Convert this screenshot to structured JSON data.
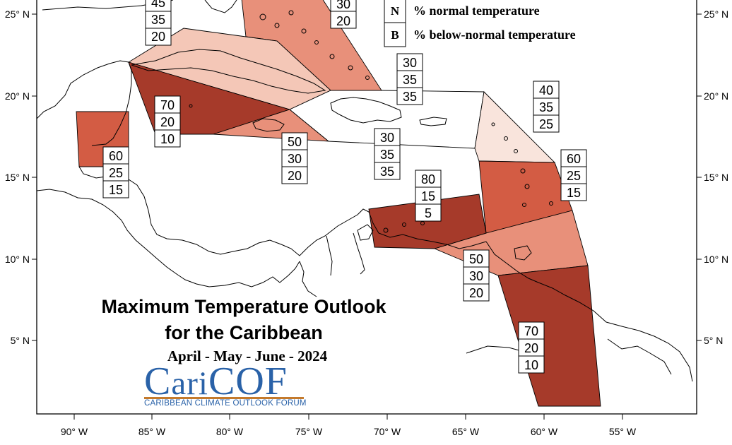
{
  "title_line1": "Maximum Temperature Outlook",
  "title_line2": "for the Caribbean",
  "season": "April - May - June - 2024",
  "logo": {
    "name": "CariCOF",
    "subtitle": "CARIBBEAN CLIMATE OUTLOOK FORUM"
  },
  "legend": [
    {
      "key": "N",
      "text": "% normal temperature"
    },
    {
      "key": "B",
      "text": "% below-normal temperature"
    }
  ],
  "axes": {
    "x_ticks": [
      "90° W",
      "85° W",
      "80° W",
      "75° W",
      "70° W",
      "65° W",
      "60° W",
      "55° W"
    ],
    "y_ticks": [
      "25° N",
      "20° N",
      "15° N",
      "10° N",
      "5° N"
    ]
  },
  "colors": {
    "dark": "#a63a2a",
    "medium": "#d35c44",
    "light": "#e8907a",
    "pale": "#f4c7b7",
    "faint": "#f9e4dc",
    "white": "#ffffff"
  },
  "regions": [
    {
      "id": "bahamas-east",
      "color": "light"
    },
    {
      "id": "cuba",
      "color": "pale"
    },
    {
      "id": "jamaica-cayman",
      "color": "dark"
    },
    {
      "id": "central-caribbean",
      "color": "light"
    },
    {
      "id": "belize",
      "color": "medium"
    },
    {
      "id": "hispaniola-pr",
      "color": "white"
    },
    {
      "id": "leeward-islands",
      "color": "faint"
    },
    {
      "id": "windward-islands",
      "color": "medium"
    },
    {
      "id": "trinidad-barbados",
      "color": "light"
    },
    {
      "id": "abc-islands-venezuela",
      "color": "dark"
    },
    {
      "id": "guianas",
      "color": "dark"
    }
  ],
  "probability_boxes": [
    {
      "id": "bahamas-west",
      "values": [
        "45",
        "35",
        "20"
      ]
    },
    {
      "id": "bahamas-east",
      "values": [
        "30",
        "20"
      ]
    },
    {
      "id": "turks-caicos",
      "values": [
        "30",
        "35",
        "35"
      ]
    },
    {
      "id": "jamaica",
      "values": [
        "70",
        "20",
        "10"
      ]
    },
    {
      "id": "belize",
      "values": [
        "60",
        "25",
        "15"
      ]
    },
    {
      "id": "central-caribbean",
      "values": [
        "50",
        "30",
        "20"
      ]
    },
    {
      "id": "hispaniola",
      "values": [
        "30",
        "35",
        "35"
      ]
    },
    {
      "id": "leeward",
      "values": [
        "40",
        "35",
        "25"
      ]
    },
    {
      "id": "windward",
      "values": [
        "60",
        "25",
        "15"
      ]
    },
    {
      "id": "abc-islands",
      "values": [
        "80",
        "15",
        "5"
      ]
    },
    {
      "id": "trinidad",
      "values": [
        "50",
        "30",
        "20"
      ]
    },
    {
      "id": "guianas",
      "values": [
        "70",
        "20",
        "10"
      ]
    }
  ]
}
